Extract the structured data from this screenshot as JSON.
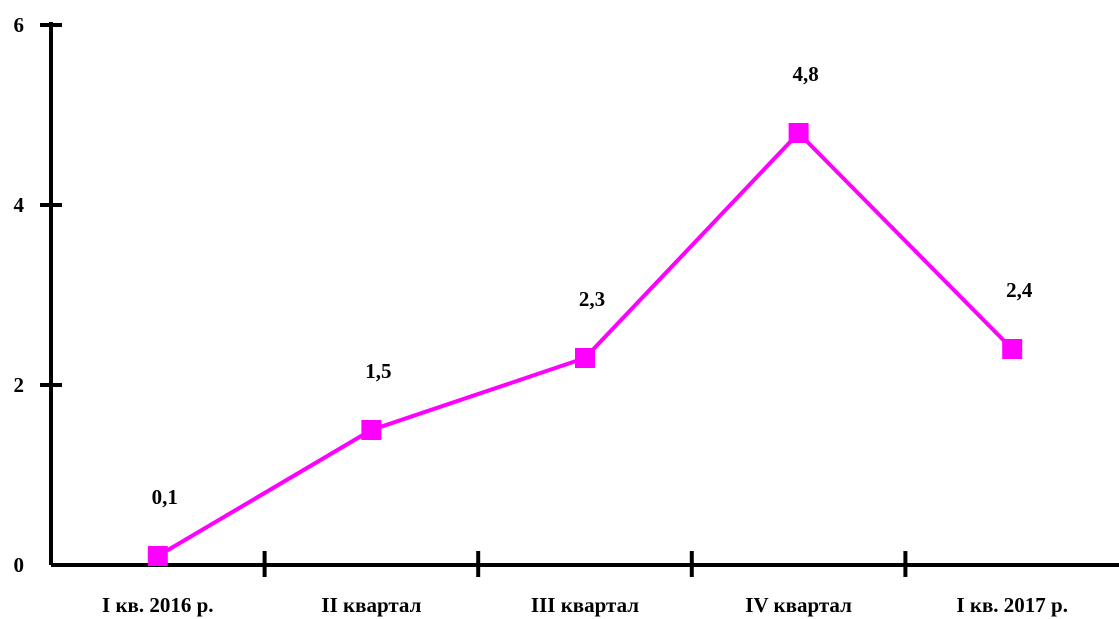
{
  "chart_data": {
    "type": "line",
    "categories": [
      "I кв. 2016 р.",
      "II квартал",
      "III квартал",
      "IV квартал",
      "I кв. 2017 р."
    ],
    "series": [
      {
        "values": [
          0.1,
          1.5,
          2.3,
          4.8,
          2.4
        ],
        "data_labels": [
          "0,1",
          "1,5",
          "2,3",
          "4,8",
          "2,4"
        ],
        "color": "#ff00ff",
        "marker": "square"
      }
    ],
    "y_ticks": [
      0,
      2,
      4,
      6
    ],
    "y_tick_labels": [
      "0",
      "2",
      "4",
      "6"
    ],
    "ylim": [
      0,
      6
    ],
    "grid": false,
    "legend": "none",
    "title": "",
    "xlabel": "",
    "ylabel": ""
  }
}
